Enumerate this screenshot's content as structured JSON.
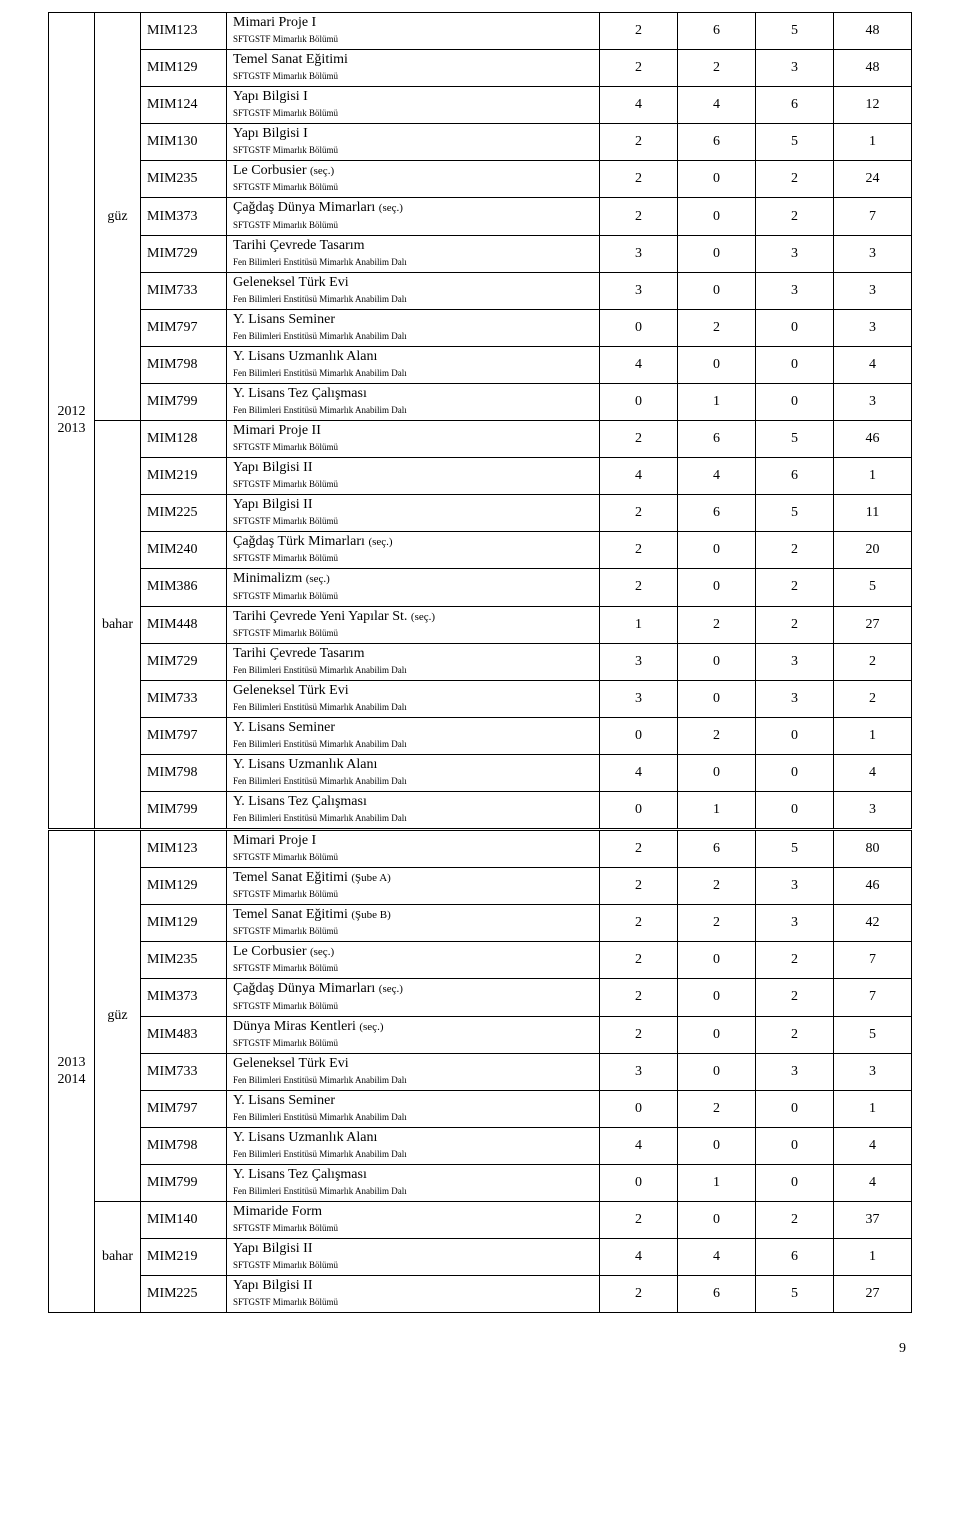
{
  "dept1": "SFTGSTF Mimarlık Bölümü",
  "dept2": "Fen Bilimleri Enstitüsü Mimarlık Anabilim Dalı",
  "sec": "(seç.)",
  "subeA": "(Şube A)",
  "subeB": "(Şube B)",
  "years": {
    "y1a": "2012",
    "y1b": "2013",
    "y2a": "2013",
    "y2b": "2014"
  },
  "sem": {
    "guz": "güz",
    "bahar": "bahar"
  },
  "rows": {
    "r01": {
      "code": "MIM123",
      "title": "Mimari Proje I",
      "n1": "2",
      "n2": "6",
      "n3": "5",
      "n4": "48"
    },
    "r02": {
      "code": "MIM129",
      "title": "Temel Sanat Eğitimi",
      "n1": "2",
      "n2": "2",
      "n3": "3",
      "n4": "48"
    },
    "r03": {
      "code": "MIM124",
      "title": "Yapı Bilgisi I",
      "n1": "4",
      "n2": "4",
      "n3": "6",
      "n4": "12"
    },
    "r04": {
      "code": "MIM130",
      "title": "Yapı Bilgisi I",
      "n1": "2",
      "n2": "6",
      "n3": "5",
      "n4": "1"
    },
    "r05": {
      "code": "MIM235",
      "title": "Le Corbusier",
      "n1": "2",
      "n2": "0",
      "n3": "2",
      "n4": "24"
    },
    "r06": {
      "code": "MIM373",
      "title": "Çağdaş Dünya Mimarları",
      "n1": "2",
      "n2": "0",
      "n3": "2",
      "n4": "7"
    },
    "r07": {
      "code": "MIM729",
      "title": "Tarihi Çevrede Tasarım",
      "n1": "3",
      "n2": "0",
      "n3": "3",
      "n4": "3"
    },
    "r08": {
      "code": "MIM733",
      "title": "Geleneksel Türk Evi",
      "n1": "3",
      "n2": "0",
      "n3": "3",
      "n4": "3"
    },
    "r09": {
      "code": "MIM797",
      "title": "Y. Lisans Seminer",
      "n1": "0",
      "n2": "2",
      "n3": "0",
      "n4": "3"
    },
    "r10": {
      "code": "MIM798",
      "title": "Y. Lisans Uzmanlık Alanı",
      "n1": "4",
      "n2": "0",
      "n3": "0",
      "n4": "4"
    },
    "r11": {
      "code": "MIM799",
      "title": "Y. Lisans Tez Çalışması",
      "n1": "0",
      "n2": "1",
      "n3": "0",
      "n4": "3"
    },
    "r12": {
      "code": "MIM128",
      "title": "Mimari Proje II",
      "n1": "2",
      "n2": "6",
      "n3": "5",
      "n4": "46"
    },
    "r13": {
      "code": "MIM219",
      "title": "Yapı Bilgisi II",
      "n1": "4",
      "n2": "4",
      "n3": "6",
      "n4": "1"
    },
    "r14": {
      "code": "MIM225",
      "title": "Yapı Bilgisi II",
      "n1": "2",
      "n2": "6",
      "n3": "5",
      "n4": "11"
    },
    "r15": {
      "code": "MIM240",
      "title": "Çağdaş Türk Mimarları",
      "n1": "2",
      "n2": "0",
      "n3": "2",
      "n4": "20"
    },
    "r16": {
      "code": "MIM386",
      "title": "Minimalizm",
      "n1": "2",
      "n2": "0",
      "n3": "2",
      "n4": "5"
    },
    "r17": {
      "code": "MIM448",
      "title": "Tarihi Çevrede Yeni Yapılar St.",
      "n1": "1",
      "n2": "2",
      "n3": "2",
      "n4": "27"
    },
    "r18": {
      "code": "MIM729",
      "title": "Tarihi Çevrede Tasarım",
      "n1": "3",
      "n2": "0",
      "n3": "3",
      "n4": "2"
    },
    "r19": {
      "code": "MIM733",
      "title": "Geleneksel Türk Evi",
      "n1": "3",
      "n2": "0",
      "n3": "3",
      "n4": "2"
    },
    "r20": {
      "code": "MIM797",
      "title": "Y. Lisans Seminer",
      "n1": "0",
      "n2": "2",
      "n3": "0",
      "n4": "1"
    },
    "r21": {
      "code": "MIM798",
      "title": "Y. Lisans Uzmanlık Alanı",
      "n1": "4",
      "n2": "0",
      "n3": "0",
      "n4": "4"
    },
    "r22": {
      "code": "MIM799",
      "title": "Y. Lisans Tez Çalışması",
      "n1": "0",
      "n2": "1",
      "n3": "0",
      "n4": "3"
    },
    "r23": {
      "code": "MIM123",
      "title": "Mimari Proje I",
      "n1": "2",
      "n2": "6",
      "n3": "5",
      "n4": "80"
    },
    "r24": {
      "code": "MIM129",
      "title": "Temel Sanat Eğitimi",
      "n1": "2",
      "n2": "2",
      "n3": "3",
      "n4": "46"
    },
    "r25": {
      "code": "MIM129",
      "title": "Temel Sanat Eğitimi",
      "n1": "2",
      "n2": "2",
      "n3": "3",
      "n4": "42"
    },
    "r26": {
      "code": "MIM235",
      "title": "Le Corbusier",
      "n1": "2",
      "n2": "0",
      "n3": "2",
      "n4": "7"
    },
    "r27": {
      "code": "MIM373",
      "title": "Çağdaş Dünya Mimarları",
      "n1": "2",
      "n2": "0",
      "n3": "2",
      "n4": "7"
    },
    "r28": {
      "code": "MIM483",
      "title": "Dünya Miras Kentleri",
      "n1": "2",
      "n2": "0",
      "n3": "2",
      "n4": "5"
    },
    "r29": {
      "code": "MIM733",
      "title": "Geleneksel Türk Evi",
      "n1": "3",
      "n2": "0",
      "n3": "3",
      "n4": "3"
    },
    "r30": {
      "code": "MIM797",
      "title": "Y. Lisans Seminer",
      "n1": "0",
      "n2": "2",
      "n3": "0",
      "n4": "1"
    },
    "r31": {
      "code": "MIM798",
      "title": "Y. Lisans Uzmanlık Alanı",
      "n1": "4",
      "n2": "0",
      "n3": "0",
      "n4": "4"
    },
    "r32": {
      "code": "MIM799",
      "title": "Y. Lisans Tez Çalışması",
      "n1": "0",
      "n2": "1",
      "n3": "0",
      "n4": "4"
    },
    "r33": {
      "code": "MIM140",
      "title": "Mimaride Form",
      "n1": "2",
      "n2": "0",
      "n3": "2",
      "n4": "37"
    },
    "r34": {
      "code": "MIM219",
      "title": "Yapı Bilgisi II",
      "n1": "4",
      "n2": "4",
      "n3": "6",
      "n4": "1"
    },
    "r35": {
      "code": "MIM225",
      "title": "Yapı Bilgisi II",
      "n1": "2",
      "n2": "6",
      "n3": "5",
      "n4": "27"
    }
  },
  "pagenum": "9"
}
